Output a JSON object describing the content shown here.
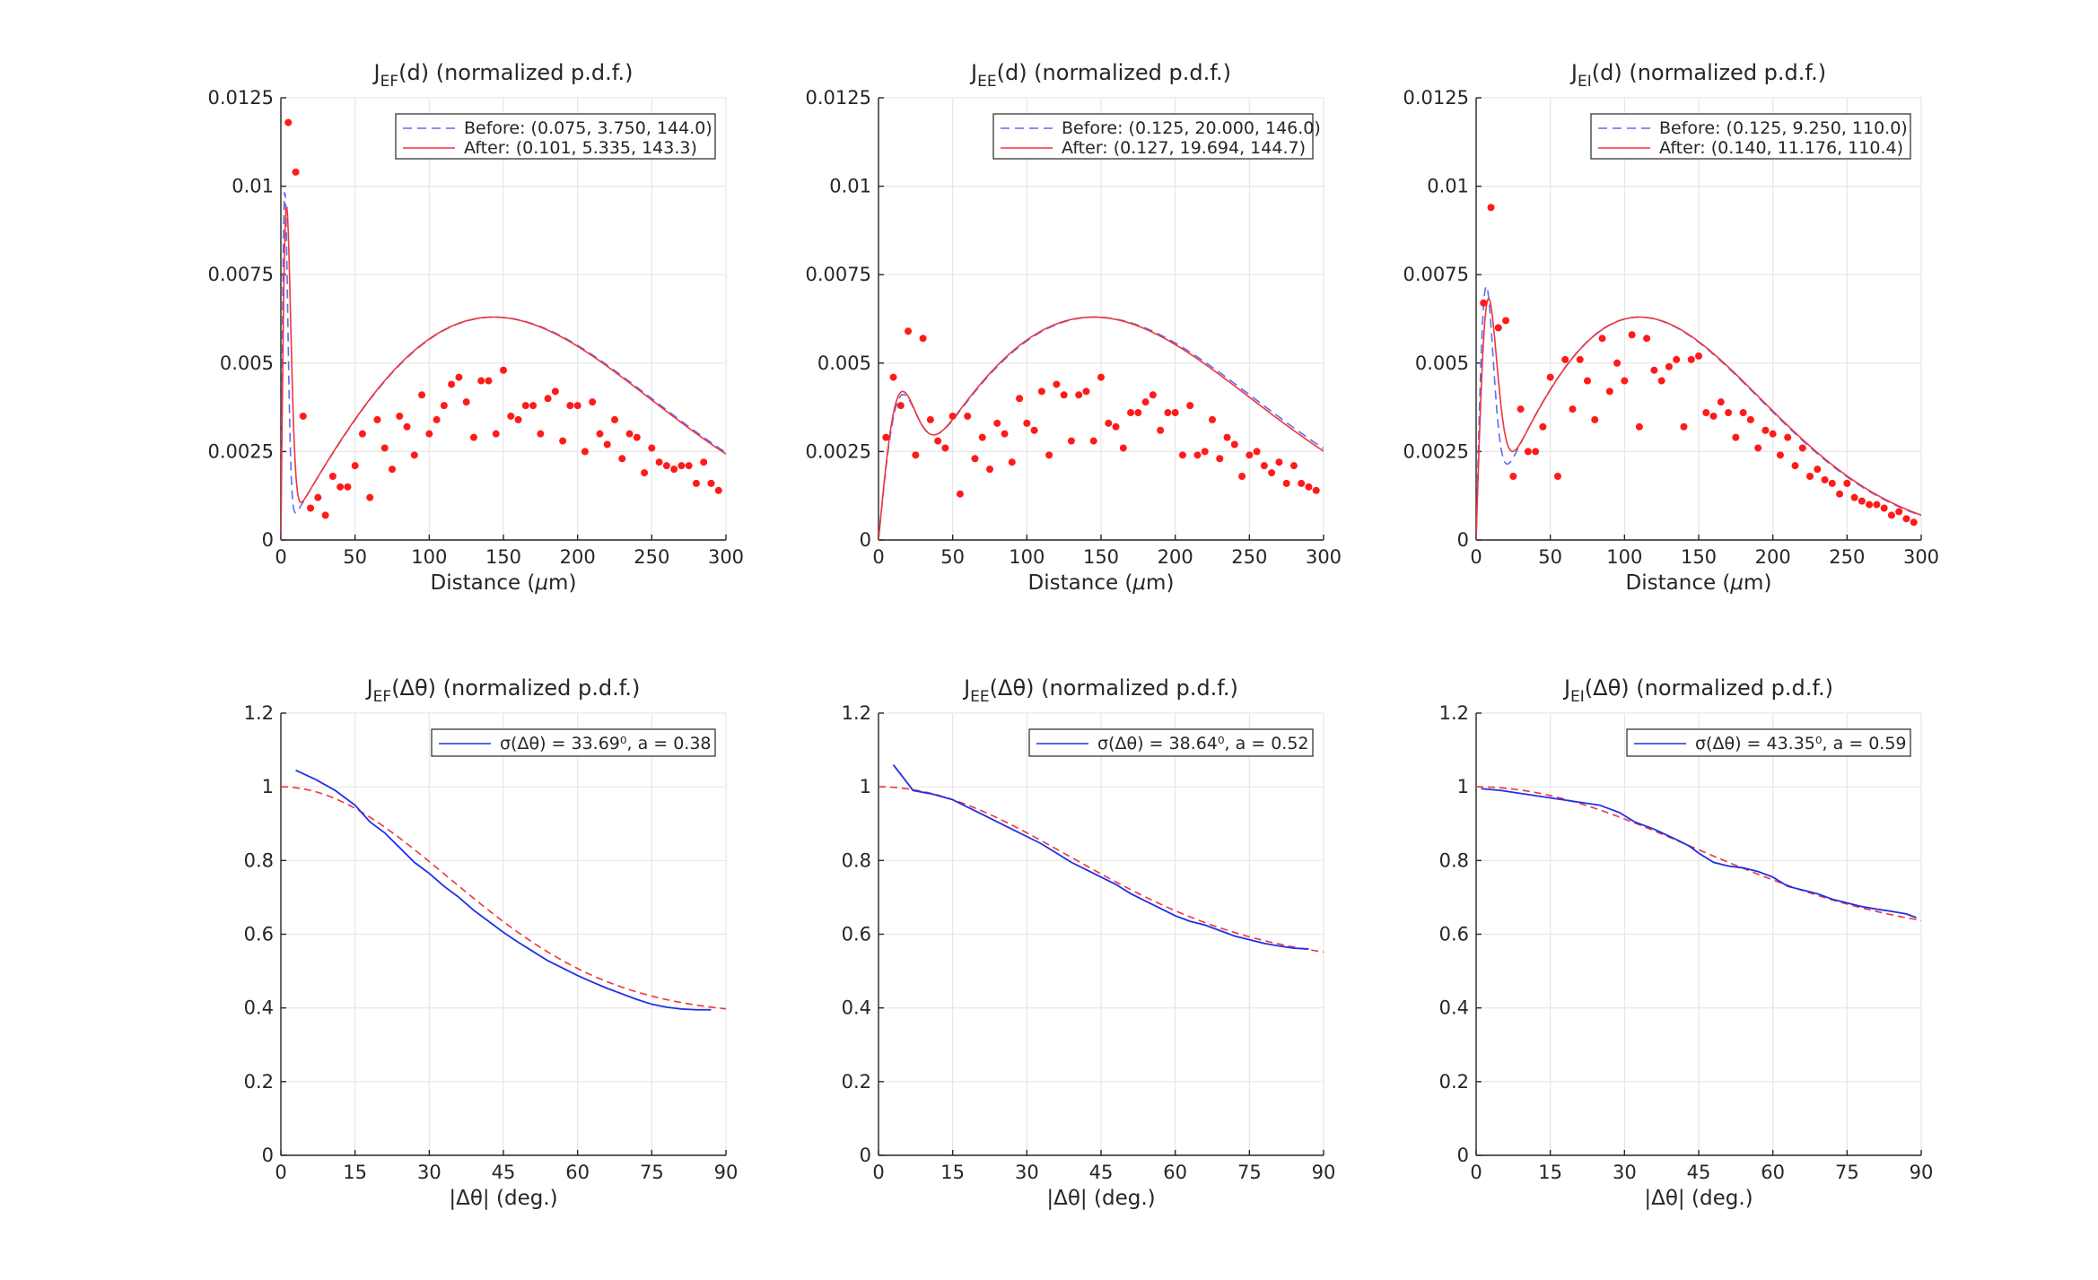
{
  "chart_data": [
    {
      "type": "scatter",
      "title": {
        "main": "J",
        "sub": "EF",
        "rest": "(d) (normalized p.d.f.)"
      },
      "xlabel": {
        "pre": "Distance (",
        "greek": "μ",
        "post": "m)"
      },
      "xlim": [
        0,
        300
      ],
      "ylim": [
        0,
        0.0125
      ],
      "xticks": [
        0,
        50,
        100,
        150,
        200,
        250,
        300
      ],
      "xtick_labels": [
        "0",
        "50",
        "100",
        "150",
        "200",
        "250",
        "300"
      ],
      "yticks": [
        0,
        0.0025,
        0.005,
        0.0075,
        0.01,
        0.0125
      ],
      "ytick_labels": [
        "0",
        "0.0025",
        "0.005",
        "0.0075",
        "0.01",
        "0.0125"
      ],
      "grid": true,
      "legend": {
        "placement": "top-right",
        "entries": [
          "Before: (0.075, 3.750, 144.0)",
          "After: (0.101, 5.335, 143.3)"
        ]
      },
      "colors": {
        "before": "#5b6cf5",
        "after": "#f0353b",
        "points": "#ff1a1a"
      },
      "series": [
        {
          "name": "Before: (0.075, 3.750, 144.0)",
          "style": "dashed",
          "params": [
            0.075,
            3.75,
            144.0
          ],
          "kind": "curve"
        },
        {
          "name": "After: (0.101, 5.335, 143.3)",
          "style": "solid",
          "params": [
            0.101,
            5.335,
            143.3
          ],
          "kind": "curve"
        },
        {
          "kind": "points",
          "x": [
            5,
            10,
            15,
            20,
            25,
            30,
            35,
            40,
            45,
            50,
            55,
            60,
            65,
            70,
            75,
            80,
            85,
            90,
            95,
            100,
            105,
            110,
            115,
            120,
            125,
            130,
            135,
            140,
            145,
            150,
            155,
            160,
            165,
            170,
            175,
            180,
            185,
            190,
            195,
            200,
            205,
            210,
            215,
            220,
            225,
            230,
            235,
            240,
            245,
            250,
            255,
            260,
            265,
            270,
            275,
            280,
            285,
            290,
            295
          ],
          "y": [
            0.0118,
            0.0104,
            0.0035,
            0.0009,
            0.0012,
            0.0007,
            0.0018,
            0.0015,
            0.0015,
            0.0021,
            0.003,
            0.0012,
            0.0034,
            0.0026,
            0.002,
            0.0035,
            0.0032,
            0.0024,
            0.0041,
            0.003,
            0.0034,
            0.0038,
            0.0044,
            0.0046,
            0.0039,
            0.0029,
            0.0045,
            0.0045,
            0.003,
            0.0048,
            0.0035,
            0.0034,
            0.0038,
            0.0038,
            0.003,
            0.004,
            0.0042,
            0.0028,
            0.0038,
            0.0038,
            0.0025,
            0.0039,
            0.003,
            0.0027,
            0.0034,
            0.0023,
            0.003,
            0.0029,
            0.0019,
            0.0026,
            0.0022,
            0.0021,
            0.002,
            0.0021,
            0.0021,
            0.0016,
            0.0022,
            0.0016,
            0.0014
          ]
        }
      ]
    },
    {
      "type": "scatter",
      "title": {
        "main": "J",
        "sub": "EE",
        "rest": "(d) (normalized p.d.f.)"
      },
      "xlabel": {
        "pre": "Distance (",
        "greek": "μ",
        "post": "m)"
      },
      "xlim": [
        0,
        300
      ],
      "ylim": [
        0,
        0.0125
      ],
      "xticks": [
        0,
        50,
        100,
        150,
        200,
        250,
        300
      ],
      "xtick_labels": [
        "0",
        "50",
        "100",
        "150",
        "200",
        "250",
        "300"
      ],
      "yticks": [
        0,
        0.0025,
        0.005,
        0.0075,
        0.01,
        0.0125
      ],
      "ytick_labels": [
        "0",
        "0.0025",
        "0.005",
        "0.0075",
        "0.01",
        "0.0125"
      ],
      "grid": true,
      "legend": {
        "placement": "top-right",
        "entries": [
          "Before: (0.125, 20.000, 146.0)",
          "After: (0.127, 19.694, 144.7)"
        ]
      },
      "colors": {
        "before": "#5b6cf5",
        "after": "#f0353b",
        "points": "#ff1a1a"
      },
      "series": [
        {
          "name": "Before: (0.125, 20.000, 146.0)",
          "style": "dashed",
          "params": [
            0.125,
            20.0,
            146.0
          ],
          "kind": "curve"
        },
        {
          "name": "After: (0.127, 19.694, 144.7)",
          "style": "solid",
          "params": [
            0.127,
            19.694,
            144.7
          ],
          "kind": "curve"
        },
        {
          "kind": "points",
          "x": [
            5,
            10,
            15,
            20,
            25,
            30,
            35,
            40,
            45,
            50,
            55,
            60,
            65,
            70,
            75,
            80,
            85,
            90,
            95,
            100,
            105,
            110,
            115,
            120,
            125,
            130,
            135,
            140,
            145,
            150,
            155,
            160,
            165,
            170,
            175,
            180,
            185,
            190,
            195,
            200,
            205,
            210,
            215,
            220,
            225,
            230,
            235,
            240,
            245,
            250,
            255,
            260,
            265,
            270,
            275,
            280,
            285,
            290,
            295
          ],
          "y": [
            0.0029,
            0.0046,
            0.0038,
            0.0059,
            0.0024,
            0.0057,
            0.0034,
            0.0028,
            0.0026,
            0.0035,
            0.0013,
            0.0035,
            0.0023,
            0.0029,
            0.002,
            0.0033,
            0.003,
            0.0022,
            0.004,
            0.0033,
            0.0031,
            0.0042,
            0.0024,
            0.0044,
            0.0041,
            0.0028,
            0.0041,
            0.0042,
            0.0028,
            0.0046,
            0.0033,
            0.0032,
            0.0026,
            0.0036,
            0.0036,
            0.0039,
            0.0041,
            0.0031,
            0.0036,
            0.0036,
            0.0024,
            0.0038,
            0.0024,
            0.0025,
            0.0034,
            0.0023,
            0.0029,
            0.0027,
            0.0018,
            0.0024,
            0.0025,
            0.0021,
            0.0019,
            0.0022,
            0.0016,
            0.0021,
            0.0016,
            0.0015,
            0.0014
          ]
        }
      ]
    },
    {
      "type": "scatter",
      "title": {
        "main": "J",
        "sub": "EI",
        "rest": "(d) (normalized p.d.f.)"
      },
      "xlabel": {
        "pre": "Distance (",
        "greek": "μ",
        "post": "m)"
      },
      "xlim": [
        0,
        300
      ],
      "ylim": [
        0,
        0.0125
      ],
      "xticks": [
        0,
        50,
        100,
        150,
        200,
        250,
        300
      ],
      "xtick_labels": [
        "0",
        "50",
        "100",
        "150",
        "200",
        "250",
        "300"
      ],
      "yticks": [
        0,
        0.0025,
        0.005,
        0.0075,
        0.01,
        0.0125
      ],
      "ytick_labels": [
        "0",
        "0.0025",
        "0.005",
        "0.0075",
        "0.01",
        "0.0125"
      ],
      "grid": true,
      "legend": {
        "placement": "top-right",
        "entries": [
          "Before: (0.125, 9.250, 110.0)",
          "After: (0.140, 11.176, 110.4)"
        ]
      },
      "colors": {
        "before": "#5b6cf5",
        "after": "#f0353b",
        "points": "#ff1a1a"
      },
      "series": [
        {
          "name": "Before: (0.125, 9.250, 110.0)",
          "style": "dashed",
          "params": [
            0.125,
            9.25,
            110.0
          ],
          "kind": "curve"
        },
        {
          "name": "After: (0.140, 11.176, 110.4)",
          "style": "solid",
          "params": [
            0.14,
            11.176,
            110.4
          ],
          "kind": "curve"
        },
        {
          "kind": "points",
          "x": [
            5,
            10,
            15,
            20,
            25,
            30,
            35,
            40,
            45,
            50,
            55,
            60,
            65,
            70,
            75,
            80,
            85,
            90,
            95,
            100,
            105,
            110,
            115,
            120,
            125,
            130,
            135,
            140,
            145,
            150,
            155,
            160,
            165,
            170,
            175,
            180,
            185,
            190,
            195,
            200,
            205,
            210,
            215,
            220,
            225,
            230,
            235,
            240,
            245,
            250,
            255,
            260,
            265,
            270,
            275,
            280,
            285,
            290,
            295
          ],
          "y": [
            0.0067,
            0.0094,
            0.006,
            0.0062,
            0.0018,
            0.0037,
            0.0025,
            0.0025,
            0.0032,
            0.0046,
            0.0018,
            0.0051,
            0.0037,
            0.0051,
            0.0045,
            0.0034,
            0.0057,
            0.0042,
            0.005,
            0.0045,
            0.0058,
            0.0032,
            0.0057,
            0.0048,
            0.0045,
            0.0049,
            0.0051,
            0.0032,
            0.0051,
            0.0052,
            0.0036,
            0.0035,
            0.0039,
            0.0036,
            0.0029,
            0.0036,
            0.0034,
            0.0026,
            0.0031,
            0.003,
            0.0024,
            0.0029,
            0.0021,
            0.0026,
            0.0018,
            0.002,
            0.0017,
            0.0016,
            0.0013,
            0.0016,
            0.0012,
            0.0011,
            0.001,
            0.001,
            0.0009,
            0.0007,
            0.0008,
            0.0006,
            0.0005
          ]
        }
      ]
    },
    {
      "type": "line",
      "title": {
        "main": "J",
        "sub": "EF",
        "rest": "(Δθ) (normalized p.d.f.)"
      },
      "xlabel": {
        "pre": "|Δθ| (deg.)",
        "greek": "",
        "post": ""
      },
      "xlim": [
        0,
        90
      ],
      "ylim": [
        0,
        1.2
      ],
      "xticks": [
        0,
        15,
        30,
        45,
        60,
        75,
        90
      ],
      "xtick_labels": [
        "0",
        "15",
        "30",
        "45",
        "60",
        "75",
        "90"
      ],
      "yticks": [
        0,
        0.2,
        0.4,
        0.6,
        0.8,
        1,
        1.2
      ],
      "ytick_labels": [
        "0",
        "0.2",
        "0.4",
        "0.6",
        "0.8",
        "1",
        "1.2"
      ],
      "grid": true,
      "legend": {
        "placement": "top-right",
        "entries": [
          "σ(Δθ) = 33.69⁰, a = 0.38"
        ]
      },
      "colors": {
        "data": "#1f2fe8",
        "fit": "#f0353b"
      },
      "series": [
        {
          "name": "σ(Δθ) = 33.69⁰, a = 0.38",
          "style": "solid",
          "kind": "data",
          "x": [
            3,
            7,
            11,
            15,
            18,
            21,
            24,
            27,
            30,
            33,
            36,
            39,
            42,
            45,
            48,
            51,
            54,
            57,
            60,
            63,
            66,
            69,
            72,
            75,
            78,
            81,
            84,
            87
          ],
          "y": [
            1.045,
            1.02,
            0.99,
            0.95,
            0.905,
            0.875,
            0.835,
            0.795,
            0.765,
            0.73,
            0.7,
            0.665,
            0.635,
            0.605,
            0.578,
            0.553,
            0.528,
            0.508,
            0.488,
            0.47,
            0.453,
            0.438,
            0.423,
            0.41,
            0.402,
            0.397,
            0.395,
            0.395
          ]
        },
        {
          "kind": "fit",
          "style": "dashed",
          "params": [
            33.69,
            0.38
          ]
        }
      ]
    },
    {
      "type": "line",
      "title": {
        "main": "J",
        "sub": "EE",
        "rest": "(Δθ) (normalized p.d.f.)"
      },
      "xlabel": {
        "pre": "|Δθ| (deg.)",
        "greek": "",
        "post": ""
      },
      "xlim": [
        0,
        90
      ],
      "ylim": [
        0,
        1.2
      ],
      "xticks": [
        0,
        15,
        30,
        45,
        60,
        75,
        90
      ],
      "xtick_labels": [
        "0",
        "15",
        "30",
        "45",
        "60",
        "75",
        "90"
      ],
      "yticks": [
        0,
        0.2,
        0.4,
        0.6,
        0.8,
        1,
        1.2
      ],
      "ytick_labels": [
        "0",
        "0.2",
        "0.4",
        "0.6",
        "0.8",
        "1",
        "1.2"
      ],
      "grid": true,
      "legend": {
        "placement": "top-right",
        "entries": [
          "σ(Δθ) = 38.64⁰, a = 0.52"
        ]
      },
      "colors": {
        "data": "#1f2fe8",
        "fit": "#f0353b"
      },
      "series": [
        {
          "name": "σ(Δθ) = 38.64⁰, a = 0.52",
          "style": "solid",
          "kind": "data",
          "x": [
            3,
            7,
            11,
            15,
            18,
            21,
            24,
            27,
            30,
            33,
            36,
            39,
            42,
            45,
            48,
            51,
            54,
            57,
            60,
            63,
            66,
            69,
            72,
            75,
            78,
            81,
            84,
            87
          ],
          "y": [
            1.06,
            0.99,
            0.98,
            0.965,
            0.945,
            0.925,
            0.905,
            0.885,
            0.865,
            0.845,
            0.82,
            0.795,
            0.775,
            0.755,
            0.735,
            0.71,
            0.69,
            0.67,
            0.65,
            0.635,
            0.625,
            0.61,
            0.595,
            0.585,
            0.575,
            0.568,
            0.562,
            0.56
          ]
        },
        {
          "kind": "fit",
          "style": "dashed",
          "params": [
            38.64,
            0.52
          ]
        }
      ]
    },
    {
      "type": "line",
      "title": {
        "main": "J",
        "sub": "EI",
        "rest": "(Δθ) (normalized p.d.f.)"
      },
      "xlabel": {
        "pre": "|Δθ| (deg.)",
        "greek": "",
        "post": ""
      },
      "xlim": [
        0,
        90
      ],
      "ylim": [
        0,
        1.2
      ],
      "xticks": [
        0,
        15,
        30,
        45,
        60,
        75,
        90
      ],
      "xtick_labels": [
        "0",
        "15",
        "30",
        "45",
        "60",
        "75",
        "90"
      ],
      "yticks": [
        0,
        0.2,
        0.4,
        0.6,
        0.8,
        1,
        1.2
      ],
      "ytick_labels": [
        "0",
        "0.2",
        "0.4",
        "0.6",
        "0.8",
        "1",
        "1.2"
      ],
      "grid": true,
      "legend": {
        "placement": "top-right",
        "entries": [
          "σ(Δθ) = 43.35⁰, a = 0.59"
        ]
      },
      "colors": {
        "data": "#1f2fe8",
        "fit": "#f0353b"
      },
      "series": [
        {
          "name": "σ(Δθ) = 43.35⁰, a = 0.59",
          "style": "solid",
          "kind": "data",
          "x": [
            1,
            5,
            10,
            15,
            20,
            25,
            29,
            32,
            36,
            40,
            43,
            45,
            48,
            51,
            54,
            57,
            60,
            63,
            66,
            69,
            72,
            75,
            78,
            81,
            84,
            87,
            89
          ],
          "y": [
            0.995,
            0.99,
            0.98,
            0.97,
            0.96,
            0.95,
            0.93,
            0.905,
            0.885,
            0.86,
            0.84,
            0.82,
            0.795,
            0.785,
            0.78,
            0.77,
            0.755,
            0.73,
            0.72,
            0.71,
            0.695,
            0.685,
            0.675,
            0.668,
            0.662,
            0.655,
            0.645
          ]
        },
        {
          "kind": "fit",
          "style": "dashed",
          "params": [
            43.35,
            0.59
          ]
        }
      ]
    }
  ]
}
